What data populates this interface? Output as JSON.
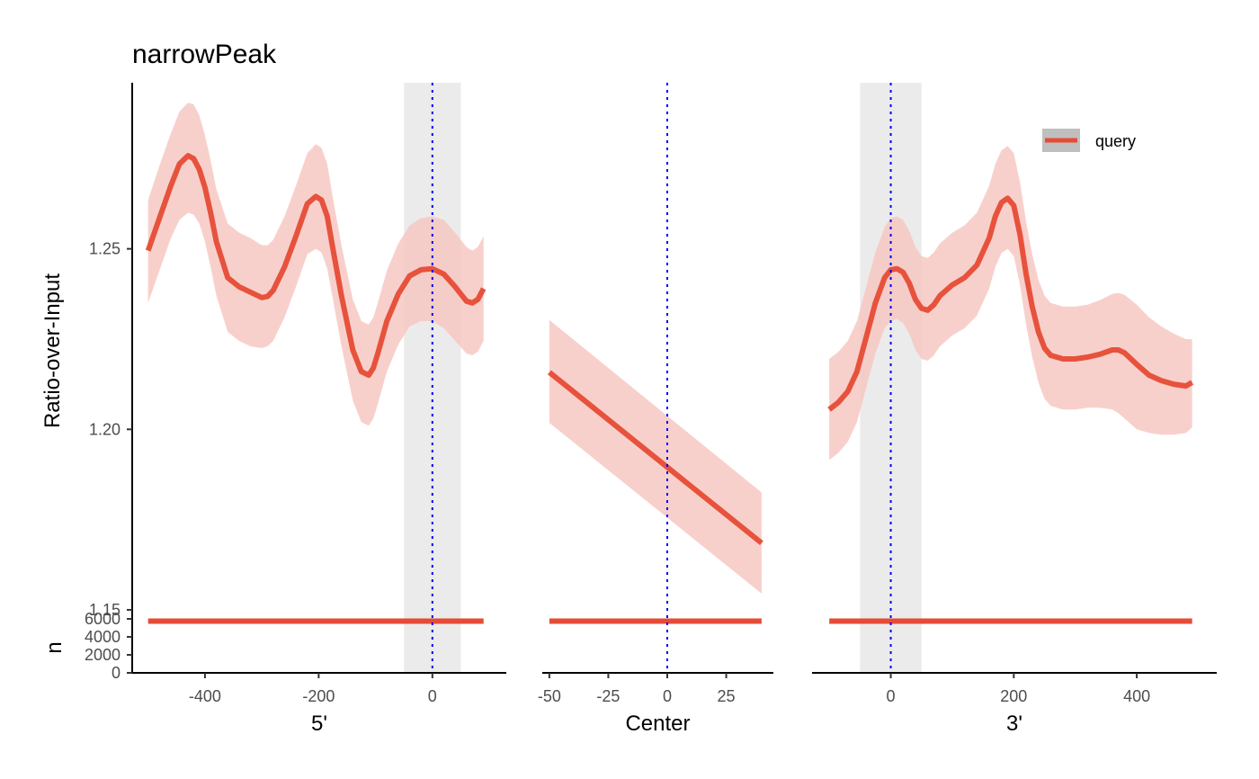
{
  "chart_data": {
    "type": "line",
    "title": "narrowPeak",
    "ylabel": "Ratio-over-Input",
    "count_label": "n",
    "ylim": [
      1.148,
      1.296
    ],
    "count_ylim": [
      0,
      6000
    ],
    "yticks": [
      1.15,
      1.2,
      1.25
    ],
    "ytick_labels": [
      "1.15",
      "1.20",
      "1.25"
    ],
    "count_ticks": [
      0,
      2000,
      4000,
      6000
    ],
    "count_tick_labels": [
      "0",
      "2000",
      "4000",
      "6000"
    ],
    "legend": {
      "placement": "top-right",
      "entries": [
        "query"
      ]
    },
    "colors": {
      "line": "#e64b35",
      "ribbon": "#f7c8c2",
      "center_band": "#ebebeb",
      "reference": "#0000ff",
      "axis": "#000000",
      "tick_text": "#4d4d4d"
    },
    "panels": [
      {
        "xlabel": "5'",
        "xlim": [
          -528,
          130
        ],
        "xticks": [
          -400,
          -200,
          0
        ],
        "xtick_labels": [
          "-400",
          "-200",
          "0"
        ],
        "shade": [
          -50,
          50
        ],
        "vline": 0,
        "series": [
          {
            "name": "query",
            "x": [
              -500,
              -480,
              -460,
              -445,
              -430,
              -420,
              -410,
              -400,
              -390,
              -380,
              -360,
              -340,
              -320,
              -300,
              -290,
              -280,
              -260,
              -240,
              -220,
              -205,
              -195,
              -185,
              -175,
              -160,
              -140,
              -125,
              -112,
              -104,
              -96,
              -80,
              -60,
              -40,
              -20,
              0,
              20,
              40,
              60,
              70,
              80,
              90
            ],
            "y": [
              1.2495,
              1.2585,
              1.2675,
              1.2735,
              1.2758,
              1.275,
              1.272,
              1.267,
              1.26,
              1.252,
              1.242,
              1.2395,
              1.238,
              1.2365,
              1.2368,
              1.2385,
              1.245,
              1.2535,
              1.2625,
              1.2645,
              1.2635,
              1.259,
              1.25,
              1.237,
              1.222,
              1.216,
              1.215,
              1.217,
              1.221,
              1.23,
              1.2375,
              1.2425,
              1.2442,
              1.2445,
              1.243,
              1.2395,
              1.2355,
              1.235,
              1.236,
              1.239
            ],
            "lower": [
              1.235,
              1.244,
              1.253,
              1.258,
              1.26,
              1.2595,
              1.257,
              1.252,
              1.245,
              1.237,
              1.227,
              1.2245,
              1.223,
              1.2225,
              1.223,
              1.2245,
              1.231,
              1.2395,
              1.2485,
              1.25,
              1.249,
              1.2445,
              1.236,
              1.223,
              1.208,
              1.202,
              1.201,
              1.203,
              1.207,
              1.216,
              1.2235,
              1.2285,
              1.23,
              1.23,
              1.228,
              1.2245,
              1.221,
              1.2205,
              1.2215,
              1.2245
            ],
            "upper": [
              1.2635,
              1.273,
              1.282,
              1.288,
              1.2905,
              1.29,
              1.287,
              1.2815,
              1.2745,
              1.2665,
              1.257,
              1.2545,
              1.253,
              1.251,
              1.251,
              1.2525,
              1.259,
              1.2675,
              1.2765,
              1.279,
              1.278,
              1.2735,
              1.264,
              1.251,
              1.236,
              1.23,
              1.229,
              1.231,
              1.235,
              1.244,
              1.2515,
              1.2565,
              1.2585,
              1.259,
              1.258,
              1.2545,
              1.2505,
              1.2495,
              1.2505,
              1.2535
            ]
          }
        ],
        "count": {
          "x": [
            -500,
            90
          ],
          "n": [
            5750,
            5750
          ]
        }
      },
      {
        "xlabel": "Center",
        "xlim": [
          -53,
          45
        ],
        "xticks": [
          -50,
          -25,
          0,
          25
        ],
        "xtick_labels": [
          "-50",
          "-25",
          "0",
          "25"
        ],
        "shade": null,
        "vline": 0,
        "series": [
          {
            "name": "query",
            "x": [
              -50,
              40
            ],
            "y": [
              1.2158,
              1.1685
            ],
            "lower": [
              1.2018,
              1.1545
            ],
            "upper": [
              1.2303,
              1.1825
            ]
          }
        ],
        "count": {
          "x": [
            -50,
            40
          ],
          "n": [
            5750,
            5750
          ]
        }
      },
      {
        "xlabel": "3'",
        "xlim": [
          -128,
          530
        ],
        "xticks": [
          0,
          200,
          400
        ],
        "xtick_labels": [
          "0",
          "200",
          "400"
        ],
        "shade": [
          -50,
          50
        ],
        "vline": 0,
        "series": [
          {
            "name": "query",
            "x": [
              -100,
              -85,
              -70,
              -55,
              -40,
              -25,
              -10,
              0,
              10,
              20,
              30,
              40,
              50,
              60,
              70,
              80,
              100,
              120,
              140,
              160,
              170,
              180,
              190,
              200,
              210,
              220,
              230,
              240,
              250,
              260,
              280,
              300,
              320,
              340,
              360,
              370,
              380,
              400,
              420,
              440,
              460,
              480,
              490
            ],
            "y": [
              1.2055,
              1.2075,
              1.2105,
              1.216,
              1.2255,
              1.235,
              1.242,
              1.2442,
              1.2445,
              1.2435,
              1.2405,
              1.236,
              1.2335,
              1.233,
              1.2345,
              1.237,
              1.24,
              1.242,
              1.2455,
              1.253,
              1.259,
              1.2628,
              1.264,
              1.262,
              1.254,
              1.243,
              1.234,
              1.227,
              1.2225,
              1.2205,
              1.2195,
              1.2195,
              1.22,
              1.2208,
              1.222,
              1.222,
              1.2212,
              1.218,
              1.215,
              1.2135,
              1.2125,
              1.212,
              1.213
            ],
            "lower": [
              1.1915,
              1.1935,
              1.1965,
              1.202,
              1.2115,
              1.221,
              1.228,
              1.23,
              1.2305,
              1.2295,
              1.2265,
              1.222,
              1.2195,
              1.219,
              1.2205,
              1.223,
              1.226,
              1.228,
              1.2315,
              1.239,
              1.245,
              1.2488,
              1.25,
              1.248,
              1.24,
              1.229,
              1.22,
              1.213,
              1.2085,
              1.2065,
              1.2055,
              1.2055,
              1.206,
              1.206,
              1.2055,
              1.2045,
              1.203,
              1.2,
              1.199,
              1.1985,
              1.1985,
              1.199,
              1.2005
            ],
            "upper": [
              1.2195,
              1.2215,
              1.2245,
              1.23,
              1.2395,
              1.249,
              1.256,
              1.2585,
              1.259,
              1.258,
              1.255,
              1.2505,
              1.248,
              1.2475,
              1.249,
              1.2515,
              1.2545,
              1.2565,
              1.26,
              1.2675,
              1.2735,
              1.2773,
              1.2785,
              1.2765,
              1.2685,
              1.2575,
              1.2485,
              1.2415,
              1.237,
              1.235,
              1.234,
              1.234,
              1.2345,
              1.2358,
              1.2375,
              1.2378,
              1.2373,
              1.2345,
              1.231,
              1.2285,
              1.2265,
              1.225,
              1.225
            ]
          }
        ],
        "count": {
          "x": [
            -100,
            490
          ],
          "n": [
            5750,
            5750
          ]
        }
      }
    ]
  }
}
